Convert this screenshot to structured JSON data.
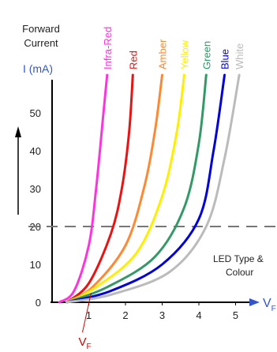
{
  "chart_data": {
    "type": "line",
    "ylabel_lines": [
      "Forward",
      "Current"
    ],
    "yunit": "I (mA)",
    "xlabel": "V",
    "xlabel_sub": "F",
    "vf_marker": {
      "label": "V",
      "sub": "F",
      "x": 1.0
    },
    "xlim": [
      0,
      5.5
    ],
    "ylim": [
      0,
      60
    ],
    "x_ticks": [
      "1",
      "2",
      "3",
      "4",
      "5"
    ],
    "y_ticks": [
      "0",
      "10",
      "20",
      "30",
      "40",
      "50"
    ],
    "reference_line": {
      "y": 20,
      "style": "dashed"
    },
    "annotation_lines": [
      "LED Type &",
      "Colour"
    ],
    "series": [
      {
        "name": "Infra-Red",
        "color": "#ff33dd",
        "x": [
          0.2,
          0.6,
          1.0,
          1.2,
          1.4,
          1.5
        ],
        "y": [
          0,
          3,
          15,
          30,
          50,
          60
        ]
      },
      {
        "name": "Red",
        "color": "#ee1111",
        "x": [
          0.4,
          1.0,
          1.6,
          1.9,
          2.1,
          2.2
        ],
        "y": [
          0,
          5,
          18,
          30,
          45,
          60
        ]
      },
      {
        "name": "Amber",
        "color": "#ff8833",
        "x": [
          0.4,
          1.1,
          2.0,
          2.5,
          2.8,
          3.0
        ],
        "y": [
          0,
          4,
          15,
          30,
          45,
          60
        ]
      },
      {
        "name": "Yellow",
        "color": "#ffee00",
        "x": [
          0.4,
          1.2,
          2.3,
          3.0,
          3.4,
          3.6
        ],
        "y": [
          0,
          4,
          13,
          28,
          45,
          60
        ]
      },
      {
        "name": "Green",
        "color": "#339966",
        "x": [
          0.4,
          1.5,
          2.8,
          3.6,
          4.0,
          4.2
        ],
        "y": [
          0,
          4,
          12,
          25,
          42,
          60
        ]
      },
      {
        "name": "Blue",
        "color": "#0000dd",
        "x": [
          0.4,
          1.6,
          3.0,
          4.0,
          4.4,
          4.7
        ],
        "y": [
          0,
          3,
          10,
          22,
          40,
          60
        ]
      },
      {
        "name": "White",
        "color": "#bbbbbb",
        "x": [
          0.4,
          1.6,
          3.2,
          4.2,
          4.7,
          5.1
        ],
        "y": [
          0,
          2,
          8,
          20,
          38,
          60
        ]
      }
    ]
  }
}
